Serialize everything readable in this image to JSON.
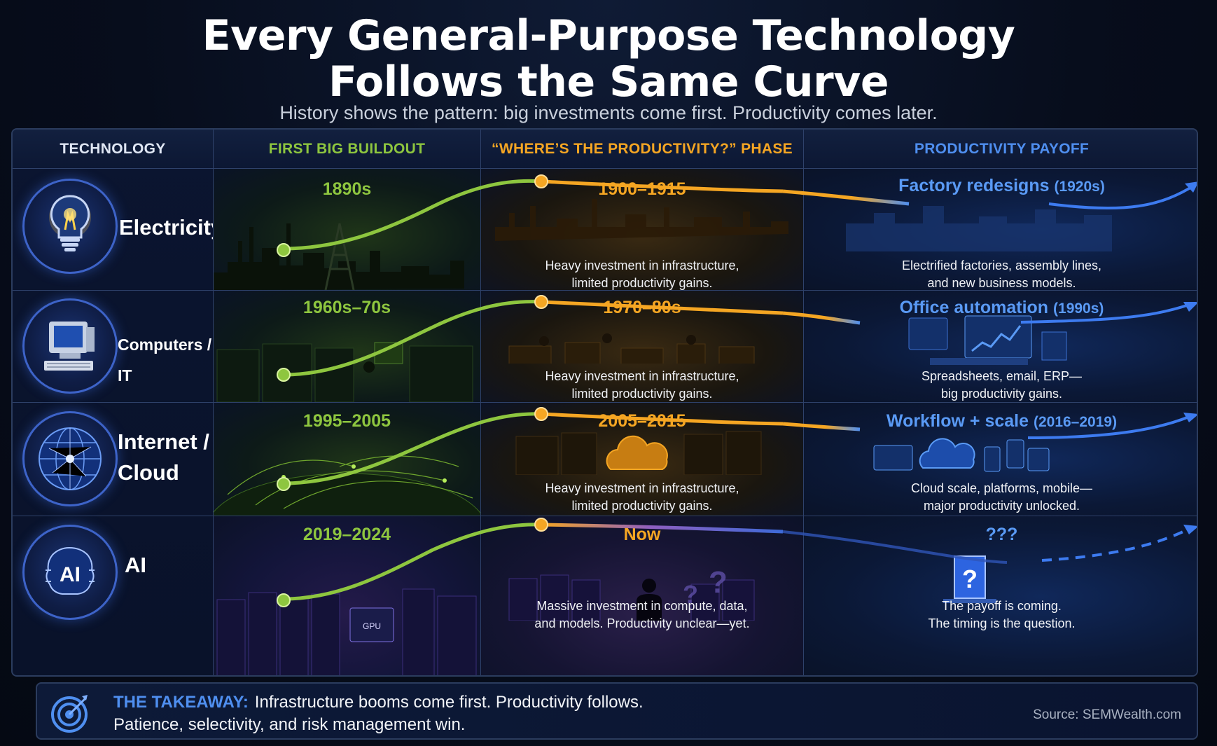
{
  "title": {
    "line1": "Every General-Purpose Technology",
    "line2": "Follows the Same Curve",
    "subtitle": "History shows the pattern: big investments come first. Productivity comes later."
  },
  "headers": {
    "technology": "TECHNOLOGY",
    "buildout": "FIRST BIG BUILDOUT",
    "phase": "“WHERE’S THE PRODUCTIVITY?” PHASE",
    "payoff": "PRODUCTIVITY PAYOFF"
  },
  "colors": {
    "green": "#8ec63f",
    "orange": "#f5a623",
    "blue": "#4f8ff0"
  },
  "rows": [
    {
      "name": "Electricity",
      "icon": "lightbulb-icon",
      "buildout_years": "1890s",
      "phase_years": "1900–1915",
      "phase_desc_1": "Heavy investment in infrastructure,",
      "phase_desc_2": "limited productivity gains.",
      "payoff_title": "Factory redesigns",
      "payoff_years": "(1920s)",
      "payoff_desc_1": "Electrified factories, assembly lines,",
      "payoff_desc_2": "and new business models."
    },
    {
      "name": "Computers / IT",
      "icon": "computer-icon",
      "buildout_years": "1960s–70s",
      "phase_years": "1970–80s",
      "phase_desc_1": "Heavy investment in infrastructure,",
      "phase_desc_2": "limited productivity gains.",
      "payoff_title": "Office automation",
      "payoff_years": "(1990s)",
      "payoff_desc_1": "Spreadsheets, email, ERP—",
      "payoff_desc_2": "big productivity gains."
    },
    {
      "name_line1": "Internet /",
      "name_line2": "Cloud",
      "icon": "globe-icon",
      "buildout_years": "1995–2005",
      "phase_years": "2005–2015",
      "phase_desc_1": "Heavy investment in infrastructure,",
      "phase_desc_2": "limited productivity gains.",
      "payoff_title": "Workflow + scale",
      "payoff_years": "(2016–2019)",
      "payoff_desc_1": "Cloud scale, platforms, mobile—",
      "payoff_desc_2": "major productivity unlocked."
    },
    {
      "name": "AI",
      "icon": "ai-brain-icon",
      "icon_text": "AI",
      "buildout_years": "2019–2024",
      "gpu_label": "GPU",
      "phase_years": "Now",
      "phase_desc_1": "Massive investment in compute, data,",
      "phase_desc_2": "and models. Productivity unclear—yet.",
      "payoff_title": "???",
      "payoff_desc_1": "The payoff is coming.",
      "payoff_desc_2": "The timing is the question."
    }
  ],
  "takeaway": {
    "label": "THE TAKEAWAY:",
    "line1": "Infrastructure booms come first. Productivity follows.",
    "line2": "Patience, selectivity, and risk management win.",
    "source": "Source: SEMWealth.com"
  }
}
